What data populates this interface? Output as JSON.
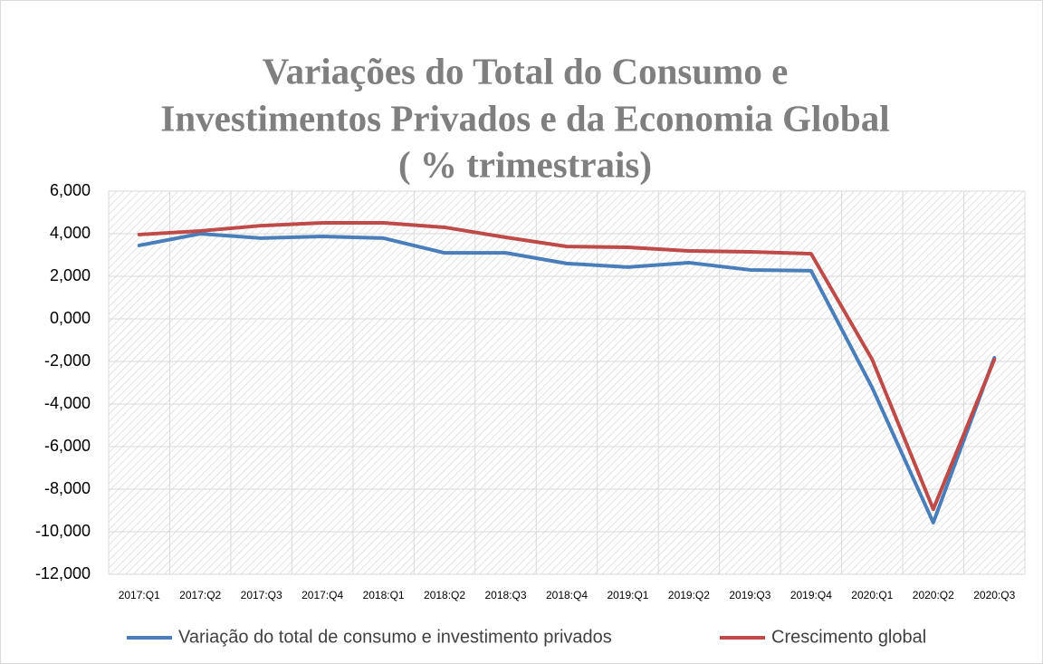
{
  "chart_data": {
    "type": "line",
    "title": [
      "Variações do Total do Consumo e",
      "Investimentos Privados e da Economia Global",
      "( % trimestrais)"
    ],
    "categories": [
      "2017:Q1",
      "2017:Q2",
      "2017:Q3",
      "2017:Q4",
      "2018:Q1",
      "2018:Q2",
      "2018:Q3",
      "2018:Q4",
      "2019:Q1",
      "2019:Q2",
      "2019:Q3",
      "2019:Q4",
      "2020:Q1",
      "2020:Q2",
      "2020:Q3"
    ],
    "series": [
      {
        "name": "Variação do total de consumo e investimento privados",
        "color": "#4a7ebb",
        "values": [
          3.45,
          4.0,
          3.79,
          3.87,
          3.79,
          3.1,
          3.1,
          2.6,
          2.43,
          2.64,
          2.3,
          2.26,
          -3.23,
          -9.57,
          -1.83
        ]
      },
      {
        "name": "Crescimento global",
        "color": "#be4b48",
        "values": [
          3.96,
          4.13,
          4.38,
          4.51,
          4.51,
          4.3,
          3.83,
          3.4,
          3.36,
          3.19,
          3.15,
          3.06,
          -1.91,
          -8.94,
          -1.91
        ]
      }
    ],
    "ylim": [
      -12,
      6
    ],
    "yticks": [
      {
        "value": 6,
        "label": "6,000"
      },
      {
        "value": 4,
        "label": "4,000"
      },
      {
        "value": 2,
        "label": "2,000"
      },
      {
        "value": 0,
        "label": "0,000"
      },
      {
        "value": -2,
        "label": "-2,000"
      },
      {
        "value": -4,
        "label": "-4,000"
      },
      {
        "value": -6,
        "label": "-6,000"
      },
      {
        "value": -8,
        "label": "-8,000"
      },
      {
        "value": -10,
        "label": "-10,000"
      },
      {
        "value": -12,
        "label": "-12,000"
      }
    ],
    "grid": true,
    "legend": "bottom"
  }
}
